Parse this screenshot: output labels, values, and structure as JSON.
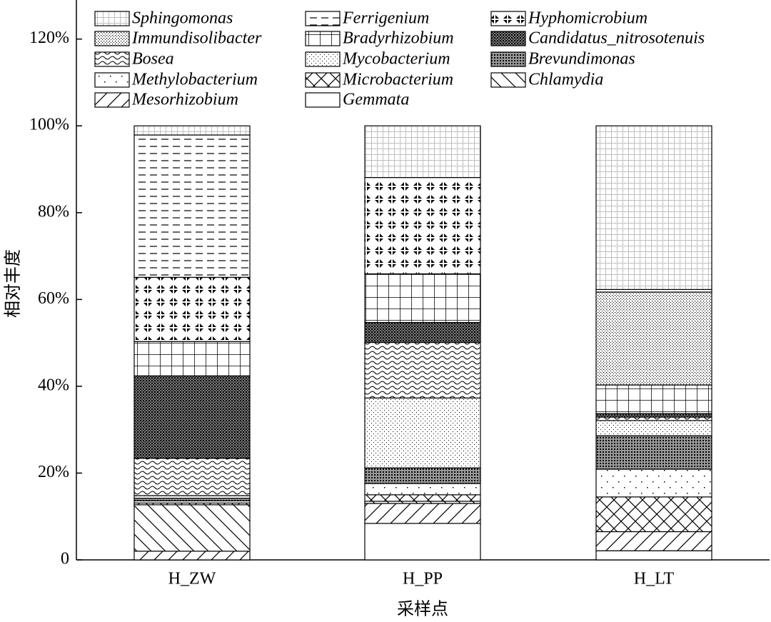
{
  "chart_data": {
    "type": "stacked-bar",
    "x_label": "采样点",
    "y_label": "相对丰度",
    "categories": [
      "H_ZW",
      "H_PP",
      "H_LT"
    ],
    "ylim": [
      0,
      129
    ],
    "yticks": [
      0,
      {
        "value": 20,
        "label": "20%"
      },
      {
        "value": 40,
        "label": "40%"
      },
      {
        "value": 60,
        "label": "60%"
      },
      {
        "value": 80,
        "label": "80%"
      },
      {
        "value": 100,
        "label": "100%"
      },
      {
        "value": 120,
        "label": "120%"
      }
    ],
    "color": "#000000",
    "series": [
      {
        "name": "Sphingomonas",
        "pattern": "dotgrid",
        "values": [
          2.1,
          11.9,
          37.7
        ]
      },
      {
        "name": "Ferrigenium",
        "pattern": "hdash",
        "values": [
          32.8,
          0,
          0.6
        ]
      },
      {
        "name": "Hyphomicrobium",
        "pattern": "diamonds",
        "values": [
          14.8,
          22.2,
          0
        ]
      },
      {
        "name": "Immundisolibacter",
        "pattern": "dense-dots",
        "values": [
          0,
          0,
          21.4
        ]
      },
      {
        "name": "Bradyrhizobium",
        "pattern": "grid",
        "values": [
          7.9,
          11.2,
          6.6
        ]
      },
      {
        "name": "Candidatus_nitrosotenuis",
        "pattern": "dark-mesh",
        "values": [
          19.0,
          4.6,
          0.8
        ]
      },
      {
        "name": "Bosea",
        "pattern": "waves",
        "values": [
          8.6,
          12.8,
          0.8
        ]
      },
      {
        "name": "Mycobacterium",
        "pattern": "fine-dots",
        "values": [
          0.6,
          16.1,
          3.5
        ]
      },
      {
        "name": "Brevundimonas",
        "pattern": "mesh",
        "values": [
          0.6,
          3.6,
          7.7
        ]
      },
      {
        "name": "Methylobacterium",
        "pattern": "sparse-dots",
        "values": [
          0.5,
          2.6,
          6.4
        ]
      },
      {
        "name": "Microbacterium",
        "pattern": "crosshatch",
        "values": [
          0.4,
          1.5,
          8.0
        ]
      },
      {
        "name": "Chlamydia",
        "pattern": "backdiag",
        "values": [
          10.7,
          0.5,
          0
        ]
      },
      {
        "name": "Mesorhizobium",
        "pattern": "diag",
        "values": [
          2.0,
          4.6,
          4.4
        ]
      },
      {
        "name": "Gemmata",
        "pattern": "none",
        "values": [
          0,
          8.4,
          2.1
        ]
      }
    ]
  }
}
